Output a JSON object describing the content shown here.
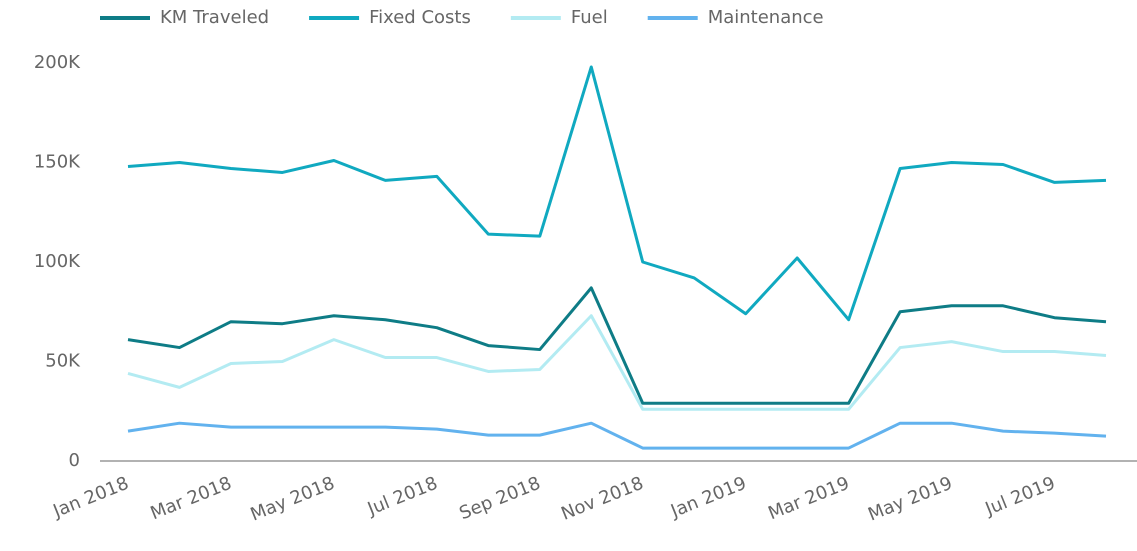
{
  "chart_data": {
    "type": "line",
    "categories": [
      "Jan 2018",
      null,
      "Mar 2018",
      null,
      "May 2018",
      null,
      "Jul 2018",
      null,
      "Sep 2018",
      null,
      "Nov 2018",
      null,
      "Jan 2019",
      null,
      "Mar 2019",
      null,
      "May 2019",
      null,
      "Jul 2019",
      null
    ],
    "series": [
      {
        "name": "KM Traveled",
        "color": "#0e7c86",
        "values": [
          61000,
          57000,
          70000,
          69000,
          73000,
          71000,
          67000,
          58000,
          56000,
          87000,
          29000,
          29000,
          29000,
          29000,
          29000,
          75000,
          78000,
          78000,
          72000,
          70000
        ]
      },
      {
        "name": "Fixed Costs",
        "color": "#10a9c0",
        "values": [
          148000,
          150000,
          147000,
          145000,
          151000,
          141000,
          143000,
          114000,
          113000,
          198000,
          100000,
          92000,
          74000,
          102000,
          71000,
          147000,
          150000,
          149000,
          140000,
          141000
        ]
      },
      {
        "name": "Fuel",
        "color": "#b3ebf2",
        "values": [
          44000,
          37000,
          49000,
          50000,
          61000,
          52000,
          52000,
          45000,
          46000,
          73000,
          26000,
          26000,
          26000,
          26000,
          26000,
          57000,
          60000,
          55000,
          55000,
          53000
        ]
      },
      {
        "name": "Maintenance",
        "color": "#62b2ee",
        "values": [
          15000,
          19000,
          17000,
          17000,
          17000,
          17000,
          16000,
          13000,
          13000,
          19000,
          6500,
          6500,
          6500,
          6500,
          6500,
          19000,
          19000,
          15000,
          14000,
          12500
        ]
      }
    ],
    "ylim": [
      0,
      200000
    ],
    "yticks": [
      0,
      {
        "value": 50000,
        "label": "50K"
      },
      {
        "value": 100000,
        "label": "100K"
      },
      {
        "value": 150000,
        "label": "150K"
      },
      {
        "value": 200000,
        "label": "200K"
      }
    ],
    "legend": "top",
    "grid": false
  }
}
